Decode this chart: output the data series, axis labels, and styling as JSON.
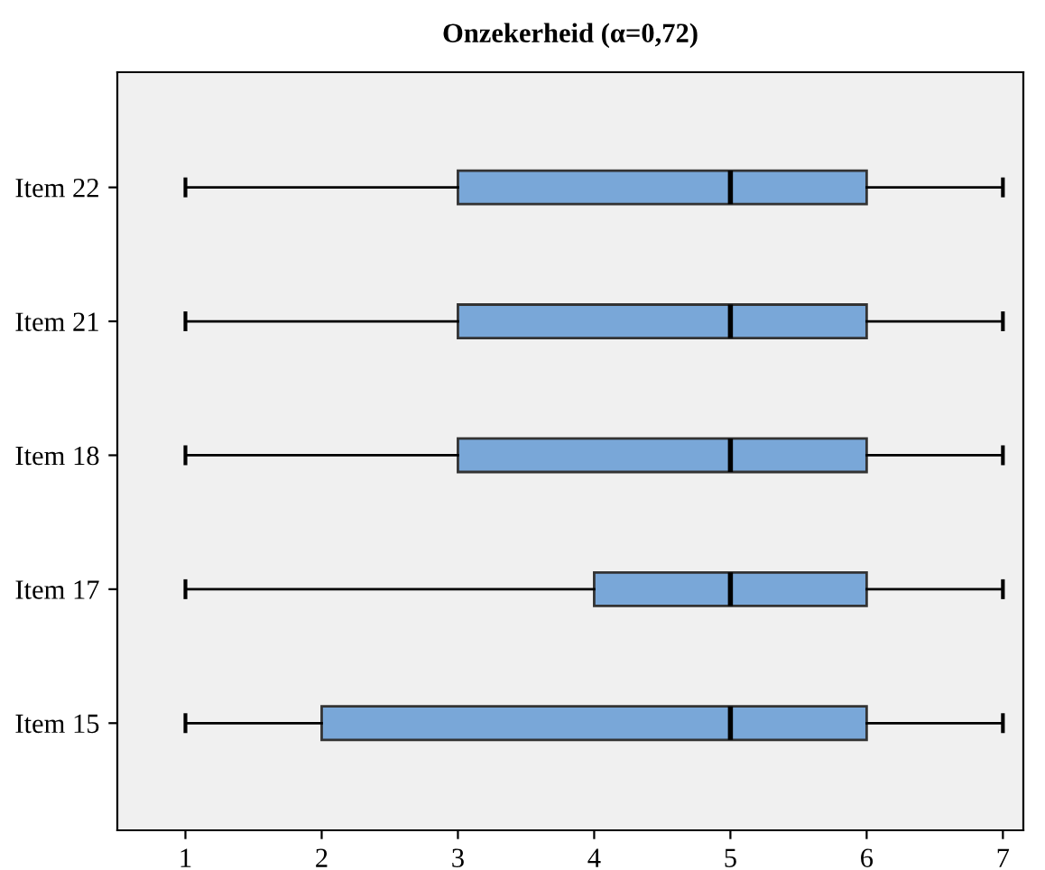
{
  "chart_data": {
    "type": "box",
    "title": "Onzekerheid (α=0,72)",
    "orientation": "horizontal",
    "categories": [
      "Item 22",
      "Item 21",
      "Item 18",
      "Item 17",
      "Item 15"
    ],
    "boxes": [
      {
        "low": 1,
        "q1": 3,
        "median": 5,
        "q3": 6,
        "high": 7
      },
      {
        "low": 1,
        "q1": 3,
        "median": 5,
        "q3": 6,
        "high": 7
      },
      {
        "low": 1,
        "q1": 3,
        "median": 5,
        "q3": 6,
        "high": 7
      },
      {
        "low": 1,
        "q1": 4,
        "median": 5,
        "q3": 6,
        "high": 7
      },
      {
        "low": 1,
        "q1": 2,
        "median": 5,
        "q3": 6,
        "high": 7
      }
    ],
    "color": "#79a7d8",
    "xlim": [
      0.5,
      7.15
    ],
    "xticks": [
      1,
      2,
      3,
      4,
      5,
      6,
      7
    ],
    "grid": false,
    "legend": false
  }
}
